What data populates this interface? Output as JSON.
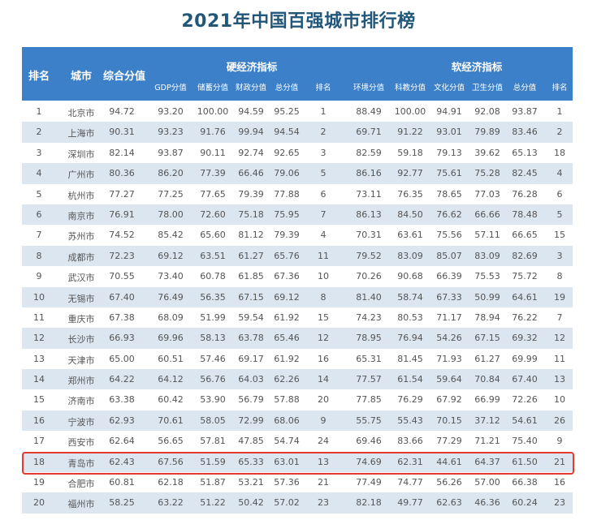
{
  "title": "2021年中国百强城市排行榜",
  "header": {
    "rank": "排名",
    "city": "城市",
    "composite": "综合分值",
    "hard_group": "硬经济指标",
    "soft_group": "软经济指标",
    "hard_cols": [
      "GDP分值",
      "储蓄分值",
      "财政分值",
      "总分值",
      "排名"
    ],
    "soft_cols": [
      "环境分值",
      "科教分值",
      "文化分值",
      "卫生分值",
      "总分值",
      "排名"
    ]
  },
  "highlight_color": "#e53a32",
  "header_color": "#3c80c9",
  "highlighted_rank": "18",
  "rows": [
    [
      "1",
      "北京市",
      "94.72",
      "93.20",
      "100.00",
      "94.59",
      "95.25",
      "1",
      "88.49",
      "100.00",
      "94.91",
      "92.08",
      "93.87",
      "1"
    ],
    [
      "2",
      "上海市",
      "90.31",
      "93.23",
      "91.76",
      "99.94",
      "94.54",
      "2",
      "69.71",
      "91.22",
      "93.01",
      "79.89",
      "83.46",
      "2"
    ],
    [
      "3",
      "深圳市",
      "82.14",
      "93.87",
      "90.11",
      "92.74",
      "92.65",
      "3",
      "82.59",
      "59.18",
      "79.13",
      "39.62",
      "65.13",
      "18"
    ],
    [
      "4",
      "广州市",
      "80.36",
      "86.20",
      "77.39",
      "66.46",
      "79.06",
      "5",
      "86.16",
      "92.77",
      "75.61",
      "75.28",
      "82.45",
      "4"
    ],
    [
      "5",
      "杭州市",
      "77.27",
      "77.25",
      "77.65",
      "79.39",
      "77.88",
      "6",
      "73.11",
      "76.35",
      "78.65",
      "77.03",
      "76.28",
      "6"
    ],
    [
      "6",
      "南京市",
      "76.91",
      "78.00",
      "72.60",
      "75.18",
      "75.95",
      "7",
      "86.13",
      "84.50",
      "76.62",
      "66.66",
      "78.48",
      "5"
    ],
    [
      "7",
      "苏州市",
      "74.52",
      "85.42",
      "65.60",
      "81.12",
      "79.39",
      "4",
      "70.31",
      "63.61",
      "75.56",
      "57.11",
      "66.65",
      "15"
    ],
    [
      "8",
      "成都市",
      "72.23",
      "69.12",
      "63.51",
      "61.27",
      "65.76",
      "11",
      "79.52",
      "83.09",
      "85.07",
      "83.09",
      "82.69",
      "3"
    ],
    [
      "9",
      "武汉市",
      "70.55",
      "73.40",
      "60.78",
      "61.85",
      "67.36",
      "10",
      "70.26",
      "90.68",
      "66.39",
      "75.53",
      "75.72",
      "8"
    ],
    [
      "10",
      "无锡市",
      "67.40",
      "76.49",
      "56.35",
      "67.15",
      "69.12",
      "8",
      "81.40",
      "58.74",
      "67.33",
      "50.99",
      "64.61",
      "19"
    ],
    [
      "11",
      "重庆市",
      "67.38",
      "68.09",
      "51.99",
      "59.54",
      "61.92",
      "15",
      "74.23",
      "80.53",
      "71.17",
      "78.94",
      "76.22",
      "7"
    ],
    [
      "12",
      "长沙市",
      "66.93",
      "69.96",
      "58.13",
      "63.78",
      "65.46",
      "12",
      "78.95",
      "76.94",
      "54.26",
      "67.15",
      "69.32",
      "12"
    ],
    [
      "13",
      "天津市",
      "65.00",
      "60.51",
      "57.46",
      "69.17",
      "61.92",
      "16",
      "65.31",
      "81.45",
      "71.93",
      "61.27",
      "69.99",
      "11"
    ],
    [
      "14",
      "郑州市",
      "64.22",
      "64.12",
      "56.76",
      "64.03",
      "62.26",
      "14",
      "77.57",
      "61.54",
      "59.64",
      "70.84",
      "67.40",
      "13"
    ],
    [
      "15",
      "济南市",
      "63.38",
      "60.42",
      "53.90",
      "56.79",
      "57.88",
      "20",
      "77.85",
      "76.29",
      "67.92",
      "66.99",
      "72.26",
      "10"
    ],
    [
      "16",
      "宁波市",
      "62.93",
      "70.61",
      "58.05",
      "72.99",
      "68.06",
      "9",
      "55.75",
      "55.43",
      "70.15",
      "37.12",
      "54.61",
      "26"
    ],
    [
      "17",
      "西安市",
      "62.64",
      "56.65",
      "57.81",
      "47.85",
      "54.74",
      "24",
      "69.46",
      "83.66",
      "77.29",
      "71.21",
      "75.40",
      "9"
    ],
    [
      "18",
      "青岛市",
      "62.43",
      "67.56",
      "51.59",
      "65.33",
      "63.01",
      "13",
      "74.69",
      "62.31",
      "44.61",
      "64.37",
      "61.50",
      "21"
    ],
    [
      "19",
      "合肥市",
      "60.81",
      "62.18",
      "51.87",
      "53.21",
      "57.36",
      "21",
      "77.49",
      "74.77",
      "56.26",
      "57.00",
      "66.38",
      "16"
    ],
    [
      "20",
      "福州市",
      "58.25",
      "63.22",
      "51.22",
      "50.42",
      "57.02",
      "23",
      "82.18",
      "49.77",
      "62.63",
      "46.36",
      "60.24",
      "23"
    ]
  ]
}
